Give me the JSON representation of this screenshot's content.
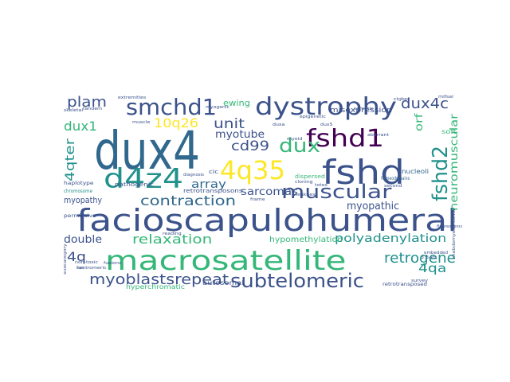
{
  "palette": {
    "dark_purple": "#440154",
    "indigo": "#3b528b",
    "blue": "#31688e",
    "teal": "#21918c",
    "green": "#35b779",
    "lime": "#90d743",
    "yellow": "#fde725"
  },
  "words": [
    {
      "text": "dux4",
      "color": "#31688e"
    },
    {
      "text": "facioscapulohumeral",
      "color": "#3b528b"
    },
    {
      "text": "macrosatellite",
      "color": "#35b779"
    },
    {
      "text": "fshd",
      "color": "#3b528b"
    },
    {
      "text": "d4z4",
      "color": "#21918c"
    },
    {
      "text": "4q35",
      "color": "#fde725"
    },
    {
      "text": "dystrophy",
      "color": "#3b528b"
    },
    {
      "text": "fshd1",
      "color": "#440154"
    },
    {
      "text": "smchd1",
      "color": "#3b528b"
    },
    {
      "text": "muscular",
      "color": "#3b528b"
    },
    {
      "text": "fshd2",
      "color": "#21918c"
    },
    {
      "text": "subtelomeric",
      "color": "#3b528b"
    },
    {
      "text": "dux",
      "color": "#35b779"
    },
    {
      "text": "retrogene",
      "color": "#21918c"
    },
    {
      "text": "myoblastsrepeat",
      "color": "#3b528b"
    },
    {
      "text": "contraction",
      "color": "#31688e"
    },
    {
      "text": "relaxation",
      "color": "#35b779"
    },
    {
      "text": "dux4c",
      "color": "#3b528b"
    },
    {
      "text": "10q26",
      "color": "#fde725"
    },
    {
      "text": "cd99",
      "color": "#3b528b"
    },
    {
      "text": "plam",
      "color": "#3b528b"
    },
    {
      "text": "unit",
      "color": "#3b528b"
    },
    {
      "text": "dux1",
      "color": "#35b779"
    },
    {
      "text": "4qter",
      "color": "#21918c"
    },
    {
      "text": "4qa",
      "color": "#21918c"
    },
    {
      "text": "4q",
      "color": "#3b528b"
    },
    {
      "text": "array",
      "color": "#31688e"
    },
    {
      "text": "polyadenylation",
      "color": "#21918c"
    },
    {
      "text": "neuromuscular",
      "color": "#35b779"
    },
    {
      "text": "myotube",
      "color": "#3b528b"
    },
    {
      "text": "myopathic",
      "color": "#3b528b"
    },
    {
      "text": "double",
      "color": "#3b528b"
    },
    {
      "text": "sarcomas",
      "color": "#3b528b"
    },
    {
      "text": "misexpression",
      "color": "#3b528b"
    },
    {
      "text": "ewing",
      "color": "#35b779"
    },
    {
      "text": "hypomethylation",
      "color": "#35b779"
    },
    {
      "text": "orf",
      "color": "#35b779"
    },
    {
      "text": "myopathy",
      "color": "#3b528b"
    },
    {
      "text": "nucleoli",
      "color": "#31688e"
    },
    {
      "text": "soft",
      "color": "#35b779"
    },
    {
      "text": "pathogenic",
      "color": "#3b528b"
    },
    {
      "text": "retrotransposons",
      "color": "#3b528b"
    },
    {
      "text": "dispersed",
      "color": "#35b779"
    },
    {
      "text": "cic",
      "color": "#3b528b"
    },
    {
      "text": "haplotype",
      "color": "#3b528b"
    },
    {
      "text": "permissive",
      "color": "#3b528b"
    },
    {
      "text": "chromosome",
      "color": "#21918c"
    },
    {
      "text": "homeodomains",
      "color": "#31688e"
    },
    {
      "text": "centromeric",
      "color": "#3b528b"
    },
    {
      "text": "non-toxic",
      "color": "#3b528b"
    },
    {
      "text": "hyperchromatic",
      "color": "#35b779"
    },
    {
      "text": "autosomal",
      "color": "#3b528b"
    },
    {
      "text": "retrotransposed",
      "color": "#3b528b"
    },
    {
      "text": "epigenetic",
      "color": "#3b528b"
    },
    {
      "text": "somatic",
      "color": "#3b528b"
    },
    {
      "text": "myogenic",
      "color": "#3b528b"
    },
    {
      "text": "extremities",
      "color": "#3b528b"
    },
    {
      "text": "skeletal",
      "color": "#3b528b"
    },
    {
      "text": "tandem",
      "color": "#3b528b"
    },
    {
      "text": "muscle",
      "color": "#3b528b"
    },
    {
      "text": "embedded",
      "color": "#3b528b"
    },
    {
      "text": "3.3-kb",
      "color": "#3b528b"
    },
    {
      "text": "myoid",
      "color": "#3b528b"
    },
    {
      "text": "totes",
      "color": "#3b528b"
    },
    {
      "text": "cloning",
      "color": "#3b528b"
    },
    {
      "text": "fusions",
      "color": "#3b528b"
    },
    {
      "text": "fus",
      "color": "#3b528b"
    },
    {
      "text": "survey",
      "color": "#3b528b"
    },
    {
      "text": "rhabdomyosarcoma",
      "color": "#3b528b"
    },
    {
      "text": "weakness",
      "color": "#3b528b"
    },
    {
      "text": "frame",
      "color": "#3b528b"
    },
    {
      "text": "fluorescence",
      "color": "#3b528b"
    },
    {
      "text": "ctgbp",
      "color": "#3b528b"
    },
    {
      "text": "mifsal",
      "color": "#3b528b"
    },
    {
      "text": "aberrant",
      "color": "#3b528b"
    },
    {
      "text": "diagnosis",
      "color": "#3b528b"
    },
    {
      "text": "duxa",
      "color": "#3b528b"
    },
    {
      "text": "second",
      "color": "#3b528b"
    },
    {
      "text": "reading",
      "color": "#3b528b"
    },
    {
      "text": "subcategory",
      "color": "#3b528b"
    },
    {
      "text": "dux5",
      "color": "#3b528b"
    }
  ]
}
